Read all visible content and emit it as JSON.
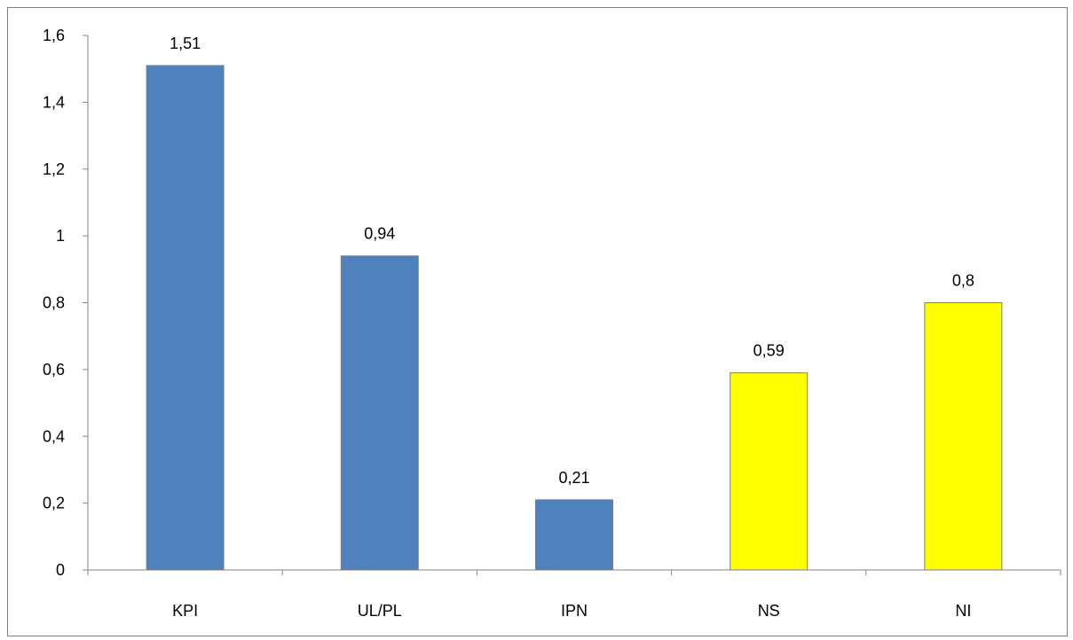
{
  "chart_data": {
    "type": "bar",
    "title": "",
    "xlabel": "",
    "ylabel": "",
    "categories": [
      "KPI",
      "UL/PL",
      "IPN",
      "NS",
      "NI"
    ],
    "values": [
      1.51,
      0.94,
      0.21,
      0.59,
      0.8
    ],
    "value_labels": [
      "1,51",
      "0,94",
      "0,21",
      "0,59",
      "0,8"
    ],
    "bar_colors": [
      "#4f81bd",
      "#4f81bd",
      "#4f81bd",
      "#ffff00",
      "#ffff00"
    ],
    "ylim": [
      0,
      1.6
    ],
    "yticks": [
      0,
      0.2,
      0.4,
      0.6,
      0.8,
      1,
      1.2,
      1.4,
      1.6
    ],
    "ytick_labels": [
      "0",
      "0,2",
      "0,4",
      "0,6",
      "0,8",
      "1",
      "1,2",
      "1,4",
      "1,6"
    ],
    "grid": false,
    "legend": "none"
  }
}
